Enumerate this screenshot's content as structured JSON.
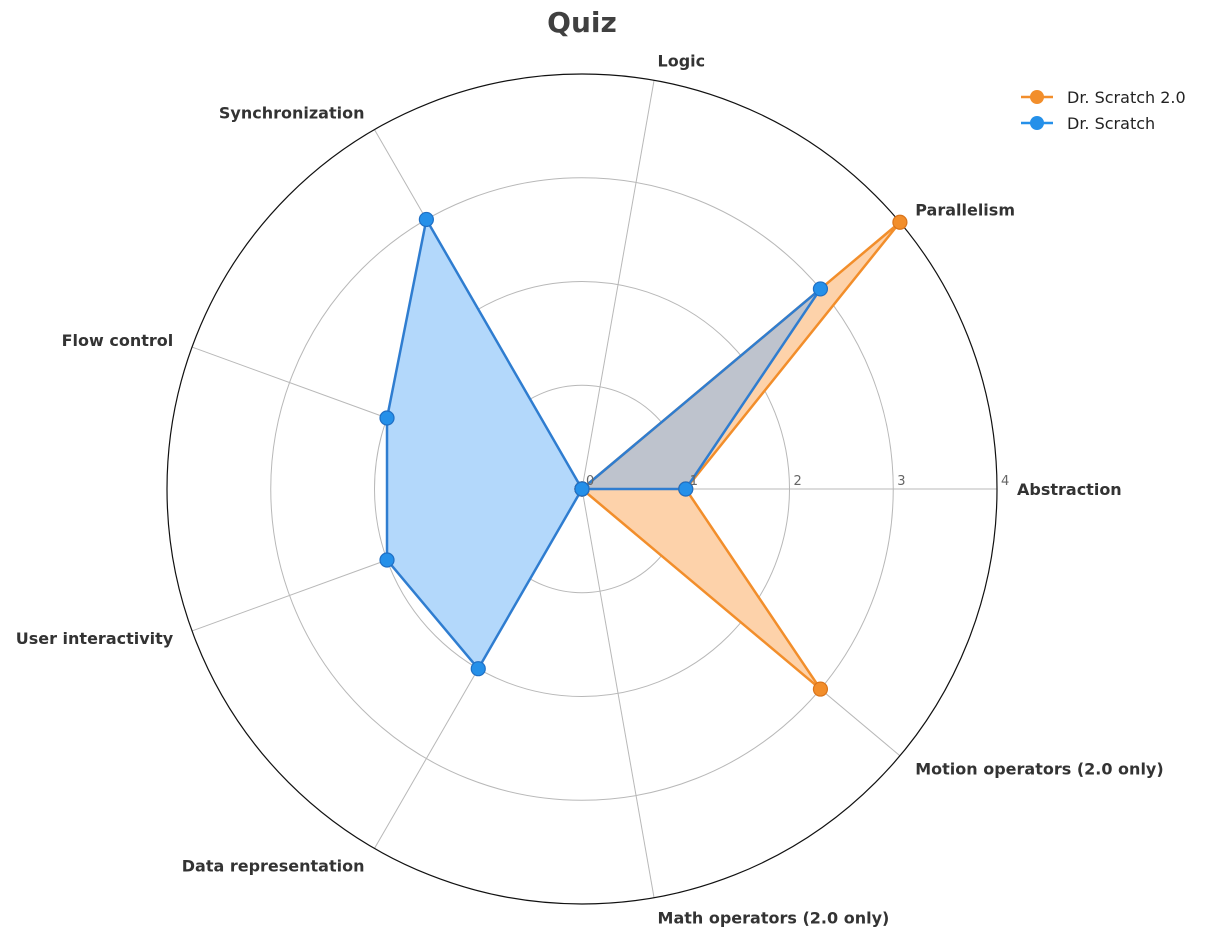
{
  "chart_data": {
    "type": "radar",
    "title": "Quiz",
    "axes": [
      "Abstraction",
      "Parallelism",
      "Logic",
      "Synchronization",
      "Flow control",
      "User interactivity",
      "Data representation",
      "Math operators (2.0 only)",
      "Motion operators (2.0 only)"
    ],
    "rlim": [
      0,
      4
    ],
    "rticks": [
      "0",
      "1",
      "2",
      "3",
      "4"
    ],
    "grid": true,
    "legend_position": "top-right",
    "series": [
      {
        "name": "Dr. Scratch 2.0",
        "color": "#f28e2b",
        "fill": "#fdd2aa",
        "values": [
          1,
          4,
          0,
          0,
          0,
          0,
          0,
          0,
          3
        ]
      },
      {
        "name": "Dr. Scratch",
        "color": "#2590e9",
        "fill": "#b3d8fb",
        "values": [
          1,
          3,
          0,
          3,
          2,
          2,
          2,
          0,
          0
        ]
      }
    ],
    "overlap_fill": "#bec3cd",
    "overlap_line": "#2f7dd0"
  }
}
